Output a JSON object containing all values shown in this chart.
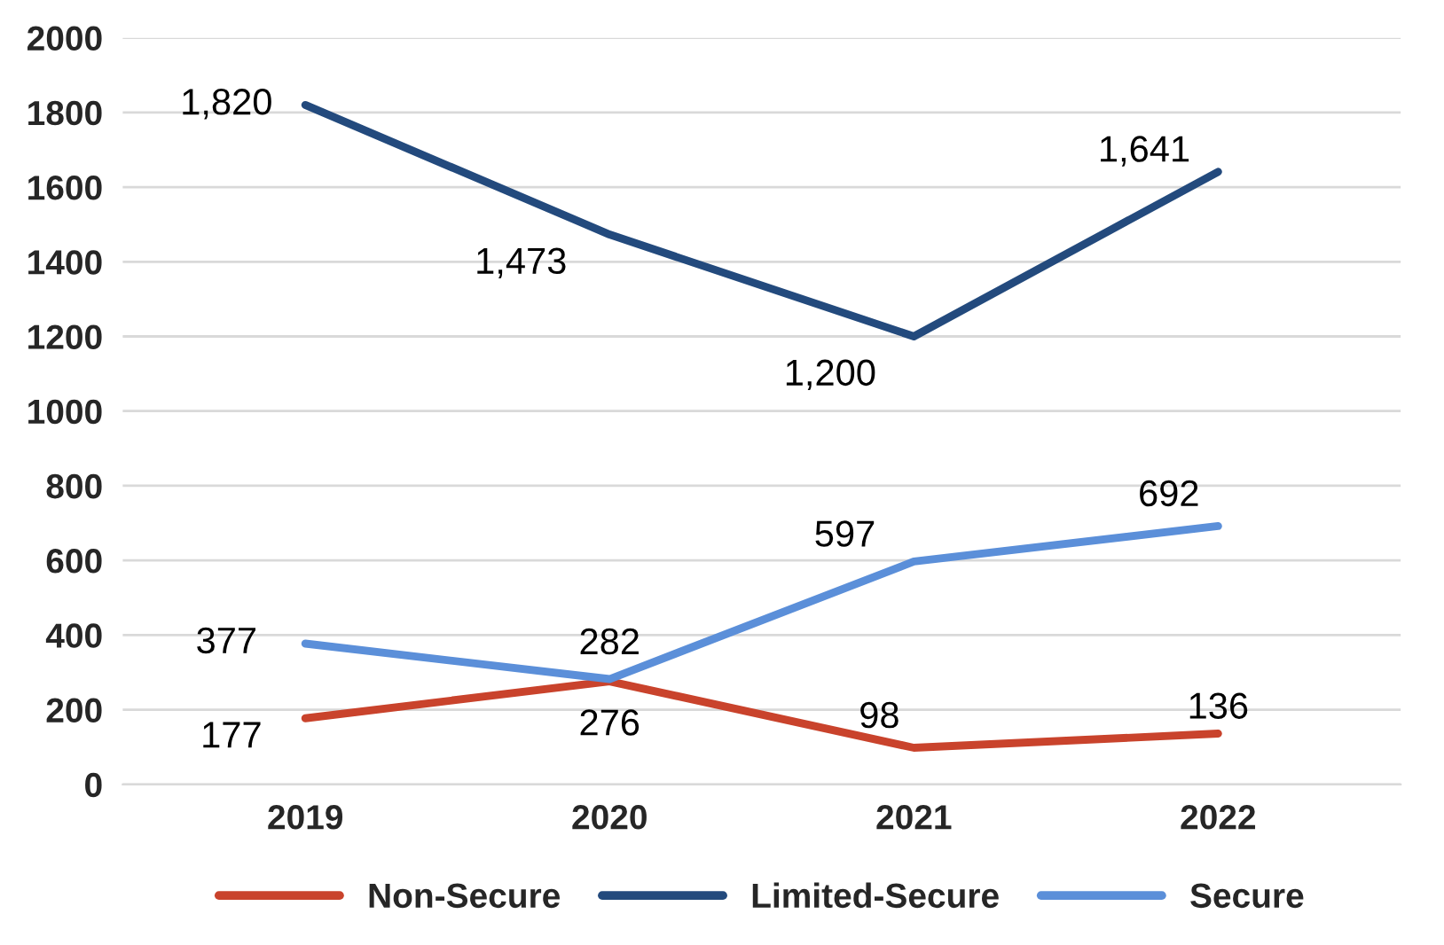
{
  "chart_data": {
    "type": "line",
    "categories": [
      "2019",
      "2020",
      "2021",
      "2022"
    ],
    "series": [
      {
        "name": "Non-Secure",
        "color": "#c9432c",
        "values": [
          177,
          276,
          98,
          136
        ],
        "value_labels": [
          "177",
          "276",
          "98",
          "136"
        ]
      },
      {
        "name": "Limited-Secure",
        "color": "#234a7d",
        "values": [
          1820,
          1473,
          1200,
          1641
        ],
        "value_labels": [
          "1,820",
          "1,473",
          "1,200",
          "1,641"
        ]
      },
      {
        "name": "Secure",
        "color": "#5b8fd9",
        "values": [
          377,
          282,
          597,
          692
        ],
        "value_labels": [
          "377",
          "282",
          "597",
          "692"
        ]
      }
    ],
    "ylim": [
      0,
      2000
    ],
    "yticks": [
      0,
      200,
      400,
      600,
      800,
      1000,
      1200,
      1400,
      1600,
      1800,
      2000
    ],
    "grid": "y",
    "legend": "bottom",
    "marker": "none",
    "line_style": "solid"
  }
}
